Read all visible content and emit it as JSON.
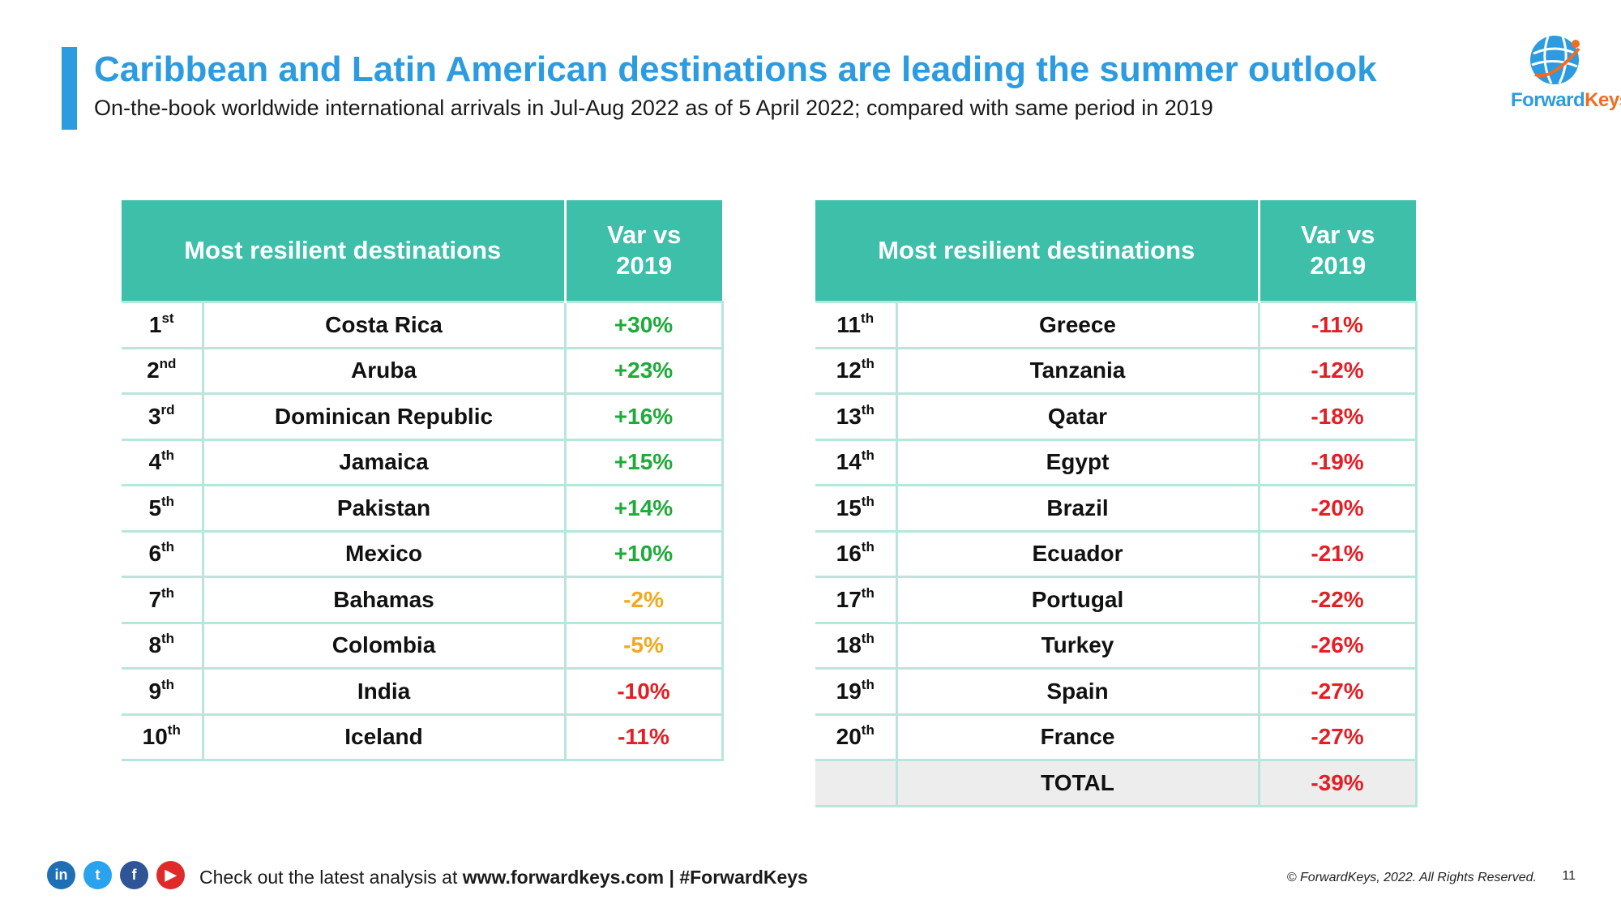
{
  "header": {
    "title": "Caribbean and Latin American destinations are leading the summer outlook",
    "subtitle": "On-the-book worldwide international arrivals in Jul-Aug 2022 as of 5 April 2022; compared with same period in 2019"
  },
  "brand": {
    "logo_text_1": "Forward",
    "logo_text_2": "Keys",
    "primary_color": "#2d9be0",
    "accent_color": "#f26b21",
    "table_header_color": "#3dbfa9"
  },
  "table_left": {
    "col_destination": "Most resilient destinations",
    "col_var_line1": "Var vs",
    "col_var_line2": "2019",
    "rows": [
      {
        "rank_num": "1",
        "rank_suffix": "st",
        "destination": "Costa Rica",
        "var": "+30%",
        "tone": "pos"
      },
      {
        "rank_num": "2",
        "rank_suffix": "nd",
        "destination": "Aruba",
        "var": "+23%",
        "tone": "pos"
      },
      {
        "rank_num": "3",
        "rank_suffix": "rd",
        "destination": "Dominican Republic",
        "var": "+16%",
        "tone": "pos"
      },
      {
        "rank_num": "4",
        "rank_suffix": "th",
        "destination": "Jamaica",
        "var": "+15%",
        "tone": "pos"
      },
      {
        "rank_num": "5",
        "rank_suffix": "th",
        "destination": "Pakistan",
        "var": "+14%",
        "tone": "pos"
      },
      {
        "rank_num": "6",
        "rank_suffix": "th",
        "destination": "Mexico",
        "var": "+10%",
        "tone": "pos"
      },
      {
        "rank_num": "7",
        "rank_suffix": "th",
        "destination": "Bahamas",
        "var": "-2%",
        "tone": "mid"
      },
      {
        "rank_num": "8",
        "rank_suffix": "th",
        "destination": "Colombia",
        "var": "-5%",
        "tone": "mid"
      },
      {
        "rank_num": "9",
        "rank_suffix": "th",
        "destination": "India",
        "var": "-10%",
        "tone": "neg"
      },
      {
        "rank_num": "10",
        "rank_suffix": "th",
        "destination": "Iceland",
        "var": "-11%",
        "tone": "neg"
      }
    ]
  },
  "table_right": {
    "col_destination": "Most resilient destinations",
    "col_var_line1": "Var vs",
    "col_var_line2": "2019",
    "rows": [
      {
        "rank_num": "11",
        "rank_suffix": "th",
        "destination": "Greece",
        "var": "-11%",
        "tone": "neg"
      },
      {
        "rank_num": "12",
        "rank_suffix": "th",
        "destination": "Tanzania",
        "var": "-12%",
        "tone": "neg"
      },
      {
        "rank_num": "13",
        "rank_suffix": "th",
        "destination": "Qatar",
        "var": "-18%",
        "tone": "neg"
      },
      {
        "rank_num": "14",
        "rank_suffix": "th",
        "destination": "Egypt",
        "var": "-19%",
        "tone": "neg"
      },
      {
        "rank_num": "15",
        "rank_suffix": "th",
        "destination": "Brazil",
        "var": "-20%",
        "tone": "neg"
      },
      {
        "rank_num": "16",
        "rank_suffix": "th",
        "destination": "Ecuador",
        "var": "-21%",
        "tone": "neg"
      },
      {
        "rank_num": "17",
        "rank_suffix": "th",
        "destination": "Portugal",
        "var": "-22%",
        "tone": "neg"
      },
      {
        "rank_num": "18",
        "rank_suffix": "th",
        "destination": "Turkey",
        "var": "-26%",
        "tone": "neg"
      },
      {
        "rank_num": "19",
        "rank_suffix": "th",
        "destination": "Spain",
        "var": "-27%",
        "tone": "neg"
      },
      {
        "rank_num": "20",
        "rank_suffix": "th",
        "destination": "France",
        "var": "-27%",
        "tone": "neg"
      }
    ],
    "total": {
      "label": "TOTAL",
      "var": "-39%",
      "tone": "neg"
    }
  },
  "tone_colors": {
    "pos": "#1faa3a",
    "mid": "#f2a81d",
    "neg": "#e31e24"
  },
  "footer": {
    "socials": [
      {
        "name": "linkedin-icon",
        "glyph": "in"
      },
      {
        "name": "twitter-icon",
        "glyph": "t"
      },
      {
        "name": "facebook-icon",
        "glyph": "f"
      },
      {
        "name": "youtube-icon",
        "glyph": "▶"
      }
    ],
    "cta_prefix": "Check out the latest analysis at ",
    "cta_link": "www.forwardkeys.com | #ForwardKeys",
    "copyright": "© ForwardKeys, 2022. All Rights Reserved.",
    "page_number": "11"
  }
}
